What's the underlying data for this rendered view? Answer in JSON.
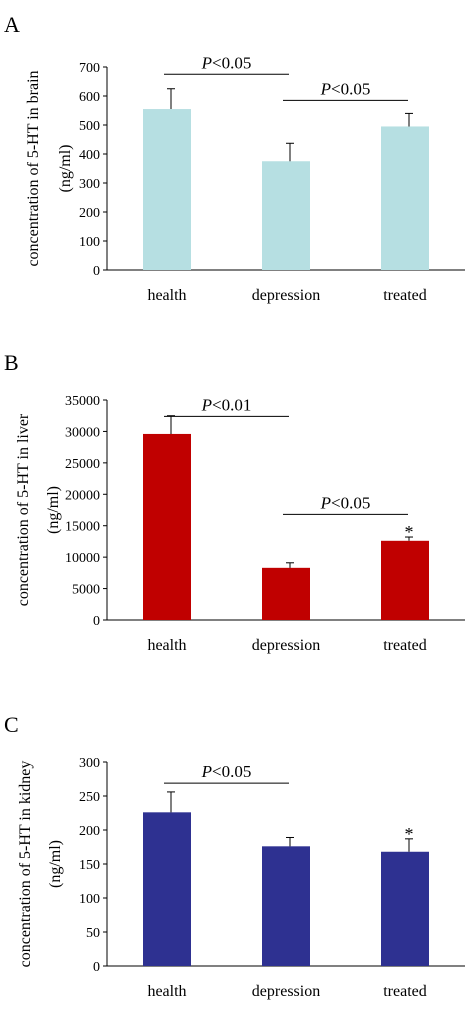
{
  "chart_data": [
    {
      "panel_label": "A",
      "type": "bar",
      "ylabel_line1": "concentration of 5-HT in brain",
      "ylabel_line2": "(ng/ml)",
      "categories": [
        "health",
        "depression",
        "treated"
      ],
      "values": [
        555,
        375,
        495
      ],
      "errors": [
        70,
        62,
        45
      ],
      "ylim": [
        0,
        700
      ],
      "yticks": [
        0,
        100,
        200,
        300,
        400,
        500,
        600,
        700
      ],
      "bar_color": "#b6dfe2",
      "brackets": [
        {
          "from": 0,
          "to": 1,
          "p_letter": "P",
          "p_rest": "<0.05",
          "value": 675
        },
        {
          "from": 1,
          "to": 2,
          "p_letter": "P",
          "p_rest": "<0.05",
          "value": 585
        }
      ],
      "stars": []
    },
    {
      "panel_label": "B",
      "type": "bar",
      "ylabel_line1": "concentration of 5-HT in liver",
      "ylabel_line2": "(ng/ml)",
      "categories": [
        "health",
        "depression",
        "treated"
      ],
      "values": [
        29600,
        8300,
        12600
      ],
      "errors": [
        2900,
        800,
        600
      ],
      "ylim": [
        0,
        35000
      ],
      "yticks": [
        0,
        5000,
        10000,
        15000,
        20000,
        25000,
        30000,
        35000
      ],
      "bar_color": "#c00000",
      "brackets": [
        {
          "from": 0,
          "to": 1,
          "p_letter": "P",
          "p_rest": "<0.01",
          "value": 32400
        },
        {
          "from": 1,
          "to": 2,
          "p_letter": "P",
          "p_rest": "<0.05",
          "value": 16800
        }
      ],
      "stars": [
        {
          "index": 2,
          "symbol": "*"
        }
      ]
    },
    {
      "panel_label": "C",
      "type": "bar",
      "ylabel_line1": "concentration of 5-HT in kidney",
      "ylabel_line2": "(ng/ml)",
      "categories": [
        "health",
        "depression",
        "treated"
      ],
      "values": [
        226,
        176,
        168
      ],
      "errors": [
        30,
        13,
        19
      ],
      "ylim": [
        0,
        300
      ],
      "yticks": [
        0,
        50,
        100,
        150,
        200,
        250,
        300
      ],
      "bar_color": "#2e3191",
      "brackets": [
        {
          "from": 0,
          "to": 1,
          "p_letter": "P",
          "p_rest": "<0.05",
          "value": 269
        }
      ],
      "stars": [
        {
          "index": 2,
          "symbol": "*"
        }
      ]
    }
  ]
}
